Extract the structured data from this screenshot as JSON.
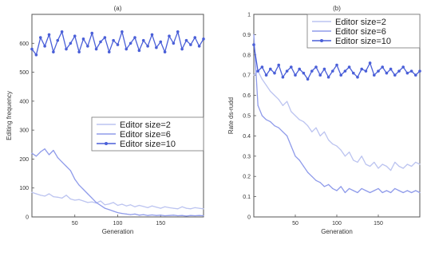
{
  "chart_data": [
    {
      "type": "line",
      "title": "(a)",
      "xlabel": "Generation",
      "ylabel": "Editing frequency",
      "xlim": [
        0,
        200
      ],
      "ylim": [
        0,
        700
      ],
      "xticks": [
        50,
        100,
        150
      ],
      "yticks": [
        0,
        100,
        200,
        300,
        400,
        500,
        600
      ],
      "xticklabels": [
        "50",
        "100",
        "150"
      ],
      "yticklabels": [
        "0",
        "100",
        "200",
        "300",
        "400",
        "500",
        "600"
      ],
      "legend_position": "center-right",
      "series": [
        {
          "name": "Editor size=2",
          "color": "#bcc4f0",
          "marker": "none",
          "x": [
            0,
            5,
            10,
            15,
            20,
            25,
            30,
            35,
            40,
            45,
            50,
            55,
            60,
            65,
            70,
            75,
            80,
            85,
            90,
            95,
            100,
            105,
            110,
            115,
            120,
            125,
            130,
            135,
            140,
            145,
            150,
            155,
            160,
            165,
            170,
            175,
            180,
            185,
            190,
            195,
            200
          ],
          "y": [
            85,
            80,
            75,
            72,
            80,
            70,
            68,
            65,
            75,
            62,
            58,
            60,
            55,
            50,
            52,
            48,
            55,
            42,
            45,
            50,
            40,
            44,
            38,
            42,
            35,
            40,
            36,
            32,
            38,
            34,
            30,
            35,
            32,
            30,
            28,
            35,
            30,
            28,
            32,
            30,
            28
          ]
        },
        {
          "name": "Editor size=6",
          "color": "#8f9bea",
          "marker": "none",
          "x": [
            0,
            5,
            10,
            15,
            20,
            25,
            30,
            35,
            40,
            45,
            50,
            55,
            60,
            65,
            70,
            75,
            80,
            85,
            90,
            95,
            100,
            105,
            110,
            115,
            120,
            125,
            130,
            135,
            140,
            145,
            150,
            155,
            160,
            165,
            170,
            175,
            180,
            185,
            190,
            195,
            200
          ],
          "y": [
            220,
            210,
            225,
            235,
            215,
            230,
            205,
            190,
            175,
            160,
            130,
            110,
            95,
            80,
            65,
            50,
            40,
            30,
            25,
            20,
            15,
            12,
            10,
            8,
            10,
            6,
            8,
            5,
            7,
            5,
            6,
            4,
            5,
            6,
            4,
            5,
            3,
            5,
            4,
            5,
            4
          ]
        },
        {
          "name": "Editor size=10",
          "color": "#4a5fd8",
          "marker": "dot",
          "x": [
            0,
            5,
            10,
            15,
            20,
            25,
            30,
            35,
            40,
            45,
            50,
            55,
            60,
            65,
            70,
            75,
            80,
            85,
            90,
            95,
            100,
            105,
            110,
            115,
            120,
            125,
            130,
            135,
            140,
            145,
            150,
            155,
            160,
            165,
            170,
            175,
            180,
            185,
            190,
            195,
            200
          ],
          "y": [
            580,
            560,
            620,
            590,
            630,
            570,
            610,
            640,
            580,
            600,
            625,
            570,
            615,
            590,
            635,
            580,
            605,
            620,
            570,
            610,
            595,
            640,
            580,
            600,
            620,
            575,
            610,
            590,
            630,
            585,
            605,
            570,
            625,
            600,
            640,
            580,
            610,
            595,
            620,
            590,
            615
          ]
        }
      ]
    },
    {
      "type": "line",
      "title": "(b)",
      "xlabel": "Generation",
      "ylabel": "Rate ds-rudd",
      "xlim": [
        0,
        200
      ],
      "ylim": [
        0,
        1
      ],
      "xticks": [
        50,
        100,
        150
      ],
      "yticks": [
        0,
        0.1,
        0.2,
        0.3,
        0.4,
        0.5,
        0.6,
        0.7,
        0.8,
        0.9,
        1
      ],
      "xticklabels": [
        "50",
        "100",
        "150"
      ],
      "yticklabels": [
        "0",
        "0.1",
        "0.2",
        "0.3",
        "0.4",
        "0.5",
        "0.6",
        "0.7",
        "0.8",
        "0.9",
        "1"
      ],
      "legend_position": "top-right",
      "series": [
        {
          "name": "Editor size=2",
          "color": "#bcc4f0",
          "marker": "none",
          "x": [
            0,
            5,
            10,
            15,
            20,
            25,
            30,
            35,
            40,
            45,
            50,
            55,
            60,
            65,
            70,
            75,
            80,
            85,
            90,
            95,
            100,
            105,
            110,
            115,
            120,
            125,
            130,
            135,
            140,
            145,
            150,
            155,
            160,
            165,
            170,
            175,
            180,
            185,
            190,
            195,
            200
          ],
          "y": [
            0.7,
            0.72,
            0.68,
            0.65,
            0.62,
            0.6,
            0.58,
            0.55,
            0.57,
            0.52,
            0.5,
            0.48,
            0.47,
            0.45,
            0.42,
            0.44,
            0.4,
            0.42,
            0.38,
            0.36,
            0.35,
            0.33,
            0.3,
            0.32,
            0.28,
            0.27,
            0.3,
            0.26,
            0.25,
            0.27,
            0.24,
            0.26,
            0.25,
            0.23,
            0.27,
            0.25,
            0.24,
            0.26,
            0.25,
            0.27,
            0.26
          ]
        },
        {
          "name": "Editor size=6",
          "color": "#8f9bea",
          "marker": "none",
          "x": [
            0,
            5,
            10,
            15,
            20,
            25,
            30,
            35,
            40,
            45,
            50,
            55,
            60,
            65,
            70,
            75,
            80,
            85,
            90,
            95,
            100,
            105,
            110,
            115,
            120,
            125,
            130,
            135,
            140,
            145,
            150,
            155,
            160,
            165,
            170,
            175,
            180,
            185,
            190,
            195,
            200
          ],
          "y": [
            0.9,
            0.55,
            0.5,
            0.48,
            0.47,
            0.45,
            0.44,
            0.42,
            0.4,
            0.35,
            0.3,
            0.28,
            0.25,
            0.22,
            0.2,
            0.18,
            0.17,
            0.15,
            0.16,
            0.14,
            0.13,
            0.15,
            0.12,
            0.14,
            0.13,
            0.12,
            0.14,
            0.13,
            0.12,
            0.13,
            0.14,
            0.12,
            0.13,
            0.12,
            0.14,
            0.13,
            0.12,
            0.13,
            0.12,
            0.13,
            0.12
          ]
        },
        {
          "name": "Editor size=10",
          "color": "#4a5fd8",
          "marker": "dot",
          "x": [
            0,
            5,
            10,
            15,
            20,
            25,
            30,
            35,
            40,
            45,
            50,
            55,
            60,
            65,
            70,
            75,
            80,
            85,
            90,
            95,
            100,
            105,
            110,
            115,
            120,
            125,
            130,
            135,
            140,
            145,
            150,
            155,
            160,
            165,
            170,
            175,
            180,
            185,
            190,
            195,
            200
          ],
          "y": [
            0.85,
            0.72,
            0.74,
            0.7,
            0.73,
            0.71,
            0.75,
            0.69,
            0.72,
            0.74,
            0.7,
            0.73,
            0.71,
            0.68,
            0.72,
            0.74,
            0.7,
            0.73,
            0.69,
            0.72,
            0.75,
            0.7,
            0.72,
            0.74,
            0.71,
            0.69,
            0.73,
            0.72,
            0.76,
            0.7,
            0.72,
            0.74,
            0.71,
            0.73,
            0.7,
            0.72,
            0.74,
            0.71,
            0.72,
            0.7,
            0.72
          ]
        }
      ]
    }
  ]
}
